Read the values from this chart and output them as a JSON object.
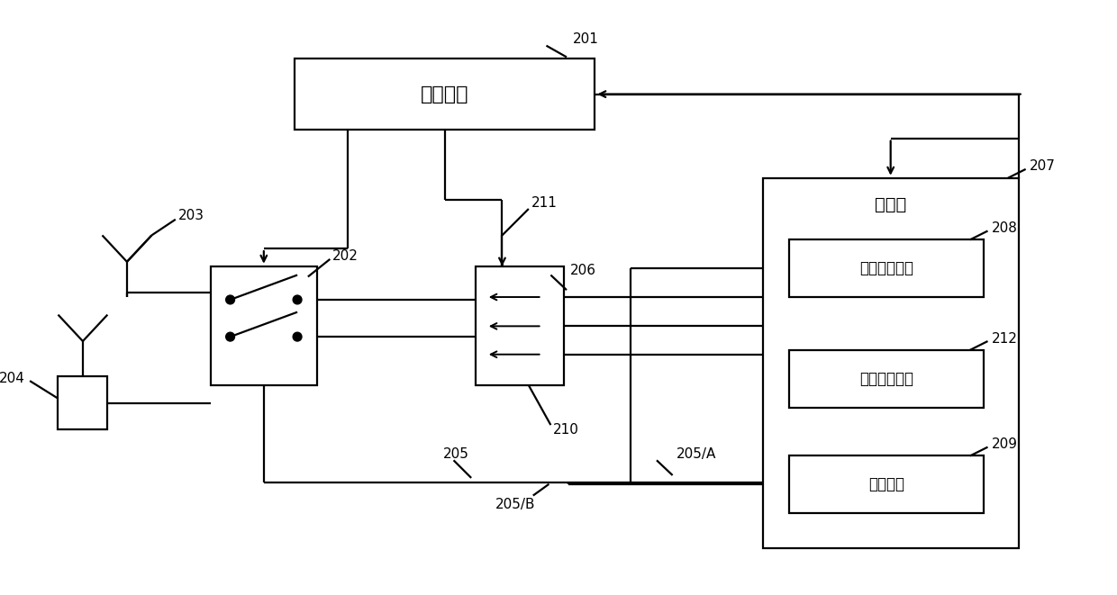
{
  "fig_width": 12.4,
  "fig_height": 6.61,
  "bg_color": "#ffffff",
  "lw": 1.6,
  "font_cn": "SimHei",
  "labels": {
    "main_chip": "主控芯片",
    "transceiver": "收发机",
    "rx1": "第一接收模块",
    "rx2": "第二接收模块",
    "tx": "发送模块",
    "n201": "201",
    "n202": "202",
    "n203": "203",
    "n204": "204",
    "n205": "205",
    "n205A": "205/A",
    "n205B": "205/B",
    "n206": "206",
    "n207": "207",
    "n208": "208",
    "n209": "209",
    "n210": "210",
    "n211": "211",
    "n212": "212"
  }
}
